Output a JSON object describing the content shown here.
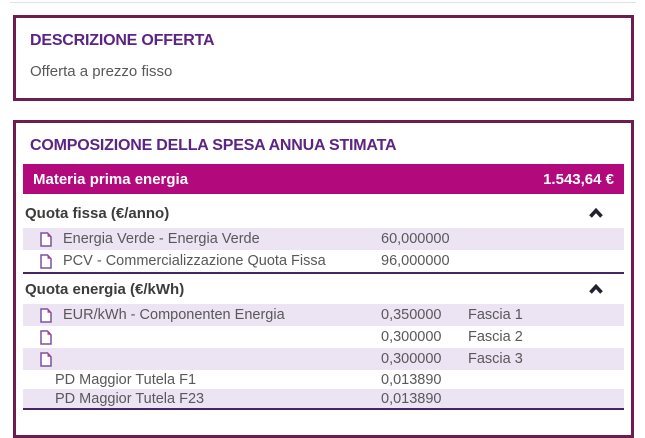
{
  "colors": {
    "accent_magenta": "#b20a7c",
    "panel_border": "#6d1e4e",
    "heading_purple": "#5c2483",
    "row_alt_lavender": "#ece4f3",
    "section_divider": "#432663",
    "body_text": "#58585a",
    "chevron": "#22222c",
    "doc_icon_outline": "#7b52a5",
    "doc_icon_fold": "#c0368c"
  },
  "description": {
    "title": "DESCRIZIONE OFFERTA",
    "body": "Offerta a prezzo fisso"
  },
  "composition": {
    "title": "COMPOSIZIONE DELLA SPESA ANNUA STIMATA",
    "summary": {
      "label": "Materia prima energia",
      "amount": "1.543,64 €"
    },
    "sections": [
      {
        "header": "Quota fissa (€/anno)",
        "collapse_icon": "chevron-up",
        "rows": [
          {
            "icon": "document",
            "label": "Energia Verde - Energia Verde",
            "value": "60,000000",
            "tier": ""
          },
          {
            "icon": "document",
            "label": "PCV - Commercializzazione Quota Fissa",
            "value": "96,000000",
            "tier": ""
          }
        ]
      },
      {
        "header": "Quota energia (€/kWh)",
        "collapse_icon": "chevron-up",
        "rows": [
          {
            "icon": "document",
            "label": "EUR/kWh - Componenten Energia",
            "value": "0,350000",
            "tier": "Fascia 1"
          },
          {
            "icon": "document",
            "label": "",
            "value": "0,300000",
            "tier": "Fascia 2"
          },
          {
            "icon": "document",
            "label": "",
            "value": "0,300000",
            "tier": "Fascia 3"
          },
          {
            "icon": "",
            "label": "PD Maggior Tutela F1",
            "value": "0,013890",
            "tier": ""
          },
          {
            "icon": "",
            "label": "PD Maggior Tutela F23",
            "value": "0,013890",
            "tier": ""
          }
        ]
      }
    ]
  }
}
